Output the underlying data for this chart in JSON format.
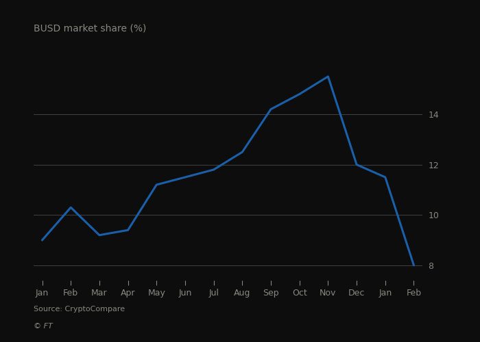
{
  "months": [
    "Jan",
    "Feb",
    "Mar",
    "Apr",
    "May",
    "Jun",
    "Jul",
    "Aug",
    "Sep",
    "Oct",
    "Nov",
    "Dec",
    "Jan",
    "Feb"
  ],
  "values": [
    9.0,
    10.3,
    9.2,
    9.4,
    11.2,
    11.5,
    11.8,
    12.5,
    14.2,
    14.8,
    15.5,
    12.0,
    11.5,
    8.0
  ],
  "line_color": "#1a5fa8",
  "line_width": 2.2,
  "background_color": "#0d0d0d",
  "text_color": "#888880",
  "grid_color": "#ffffff",
  "grid_alpha": 0.25,
  "title": "BUSD market share (%)",
  "title_fontsize": 10,
  "yticks": [
    8,
    10,
    12,
    14
  ],
  "ylim": [
    7.4,
    16.5
  ],
  "xlim": [
    -0.3,
    13.3
  ],
  "source_text": "Source: CryptoCompare",
  "ft_text": "© FT",
  "label_fontsize": 9
}
